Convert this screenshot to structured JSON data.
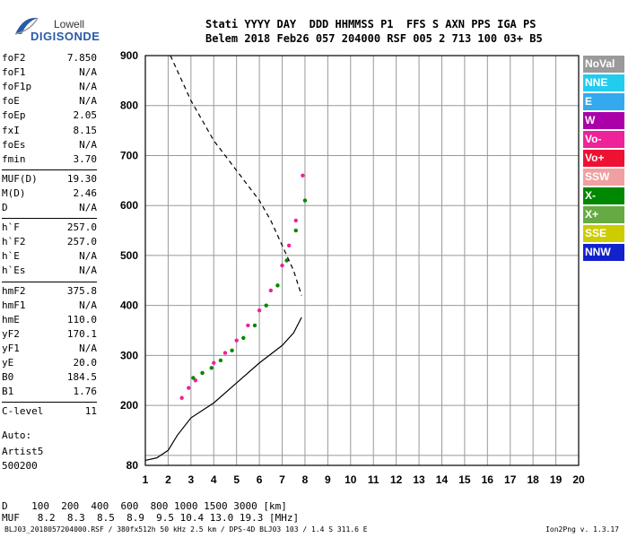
{
  "logo": {
    "line1": "Lowell",
    "line2": "DIGISONDE"
  },
  "header": {
    "line1": "Stati YYYY DAY  DDD HHMMSS P1  FFS S AXN PPS IGA PS",
    "line2": "Belem 2018 Feb26 057 204000 RSF 005 2 713 100 03+ B5"
  },
  "params": [
    {
      "name": "foF2",
      "value": "7.850"
    },
    {
      "name": "foF1",
      "value": "N/A"
    },
    {
      "name": "foF1p",
      "value": "N/A"
    },
    {
      "name": "foE",
      "value": "N/A"
    },
    {
      "name": "foEp",
      "value": "2.05"
    },
    {
      "name": "fxI",
      "value": "8.15"
    },
    {
      "name": "foEs",
      "value": "N/A"
    },
    {
      "name": "fmin",
      "value": "3.70"
    },
    {
      "name": "MUF(D)",
      "value": "19.30"
    },
    {
      "name": "M(D)",
      "value": "2.46"
    },
    {
      "name": "D",
      "value": "N/A"
    },
    {
      "name": "h`F",
      "value": "257.0"
    },
    {
      "name": "h`F2",
      "value": "257.0"
    },
    {
      "name": "h`E",
      "value": "N/A"
    },
    {
      "name": "h`Es",
      "value": "N/A"
    },
    {
      "name": "hmF2",
      "value": "375.8"
    },
    {
      "name": "hmF1",
      "value": "N/A"
    },
    {
      "name": "hmE",
      "value": "110.0"
    },
    {
      "name": "yF2",
      "value": "170.1"
    },
    {
      "name": "yF1",
      "value": "N/A"
    },
    {
      "name": "yE",
      "value": "20.0"
    },
    {
      "name": "B0",
      "value": "184.5"
    },
    {
      "name": "B1",
      "value": "1.76"
    },
    {
      "name": "C-level",
      "value": "11"
    }
  ],
  "auto": {
    "line1": "Auto:",
    "line2": "Artist5",
    "line3": "500200"
  },
  "legend": [
    {
      "label": "NoVal",
      "color": "#9a9a9a"
    },
    {
      "label": "NNE",
      "color": "#22ccee"
    },
    {
      "label": "E",
      "color": "#33aaee"
    },
    {
      "label": "W",
      "color": "#aa00aa"
    },
    {
      "label": "Vo-",
      "color": "#ee2299"
    },
    {
      "label": "Vo+",
      "color": "#ee1133"
    },
    {
      "label": "SSW",
      "color": "#f0a0a0"
    },
    {
      "label": "X-",
      "color": "#008800"
    },
    {
      "label": "X+",
      "color": "#66aa44"
    },
    {
      "label": "SSE",
      "color": "#cccc00"
    },
    {
      "label": "NNW",
      "color": "#1122cc"
    }
  ],
  "footer": {
    "d_row": "D    100  200  400  600  800 1000 1500 3000 [km]",
    "muf_row": "MUF   8.2  8.3  8.5  8.9  9.5 10.4 13.0 19.3 [MHz]",
    "credit": "BLJ03_2018057204000.RSF / 380fx512h 50 kHz 2.5 km / DPS-4D BLJ03 103 / 1.4 S 311.6 E",
    "version": "Ion2Png v. 1.3.17"
  },
  "chart_data": {
    "type": "scatter",
    "title": "",
    "xlabel": "",
    "ylabel": "",
    "xlim": [
      1,
      20
    ],
    "ylim": [
      80,
      900
    ],
    "x_ticks": [
      1,
      2,
      3,
      4,
      5,
      6,
      7,
      8,
      9,
      10,
      11,
      12,
      13,
      14,
      15,
      16,
      17,
      18,
      19,
      20
    ],
    "y_ticks": [
      80,
      100,
      200,
      300,
      400,
      500,
      600,
      700,
      800,
      900
    ],
    "y_tick_labels": [
      80,
      200,
      300,
      400,
      500,
      600,
      700,
      800,
      900
    ],
    "grid": true,
    "legend_position": "right",
    "series": [
      {
        "name": "Vo-",
        "color": "#ee2299",
        "x": [
          2.6,
          2.9,
          3.2,
          3.5,
          4.0,
          4.5,
          5.0,
          5.5,
          6.0,
          6.5,
          7.0,
          7.3,
          7.6,
          7.9
        ],
        "y": [
          215,
          235,
          250,
          265,
          285,
          305,
          330,
          360,
          390,
          430,
          480,
          520,
          570,
          660
        ]
      },
      {
        "name": "X-",
        "color": "#008800",
        "x": [
          3.1,
          3.5,
          3.9,
          4.3,
          4.8,
          5.3,
          5.8,
          6.3,
          6.8,
          7.2,
          7.6,
          8.0
        ],
        "y": [
          255,
          265,
          275,
          290,
          310,
          335,
          360,
          400,
          440,
          490,
          550,
          610
        ]
      },
      {
        "name": "model profile",
        "color": "#000000",
        "x": [
          1.0,
          1.5,
          2.0,
          2.4,
          3.0,
          4.0,
          5.0,
          6.0,
          7.0,
          7.5,
          7.85
        ],
        "y": [
          90,
          95,
          110,
          140,
          175,
          205,
          245,
          285,
          320,
          345,
          376
        ]
      },
      {
        "name": "virtual height profile",
        "color": "#000000",
        "x": [
          2.1,
          2.6,
          3.0,
          3.5,
          4.0,
          4.5,
          5.0,
          5.5,
          6.0,
          6.5,
          7.0,
          7.5,
          7.85
        ],
        "y": [
          900,
          850,
          810,
          770,
          730,
          700,
          670,
          640,
          610,
          570,
          520,
          470,
          420
        ]
      }
    ]
  }
}
